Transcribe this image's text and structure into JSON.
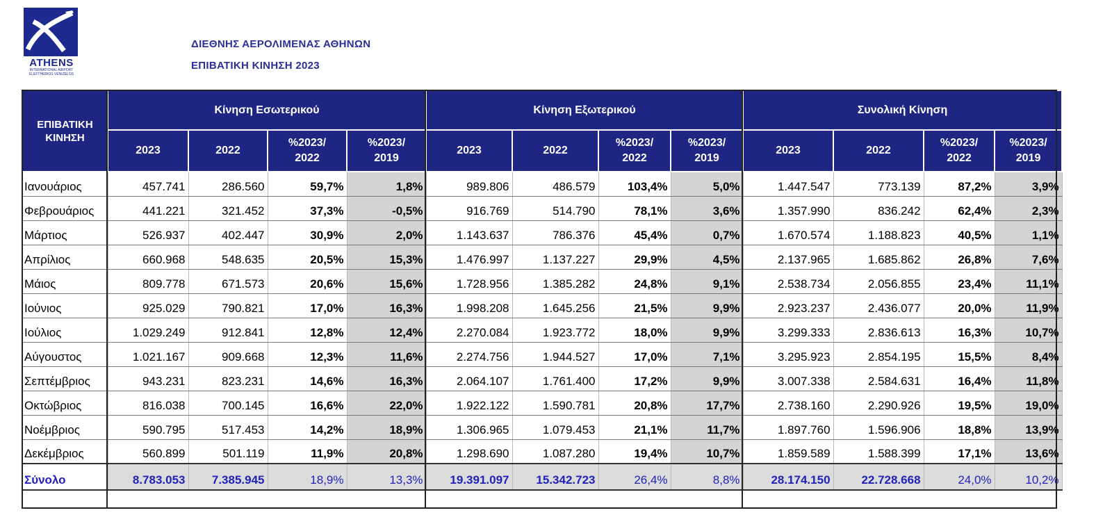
{
  "logo": {
    "word": "ATHENS",
    "sub1": "INTERNATIONAL AIRPORT",
    "sub2": "ELEFTHERIOS VENIZELOS",
    "colors": {
      "brand": "#1e2a8f"
    }
  },
  "header": {
    "title": "ΔΙΕΘΝΗΣ ΑΕΡΟΛΙΜΕΝΑΣ ΑΘΗΝΩΝ",
    "subtitle": "ΕΠΙΒΑΤΙΚΗ ΚΙΝΗΣΗ 2023"
  },
  "table": {
    "corner_line1": "ΕΠΙΒΑΤΙΚΗ",
    "corner_line2": "ΚΙΝΗΣΗ",
    "groups": [
      "Κίνηση Εσωτερικού",
      "Κίνηση Εξωτερικού",
      "Συνολική Κίνηση"
    ],
    "subcols": [
      {
        "l1": "2023",
        "l2": ""
      },
      {
        "l1": "2022",
        "l2": ""
      },
      {
        "l1": "%2023/",
        "l2": "2022"
      },
      {
        "l1": "%2023/",
        "l2": "2019"
      }
    ],
    "rows": [
      {
        "month": "Ιανουάριος",
        "d23": "457.741",
        "d22": "286.560",
        "dp22": "59,7%",
        "dp19": "1,8%",
        "i23": "989.806",
        "i22": "486.579",
        "ip22": "103,4%",
        "ip19": "5,0%",
        "t23": "1.447.547",
        "t22": "773.139",
        "tp22": "87,2%",
        "tp19": "3,9%"
      },
      {
        "month": "Φεβρουάριος",
        "d23": "441.221",
        "d22": "321.452",
        "dp22": "37,3%",
        "dp19": "-0,5%",
        "i23": "916.769",
        "i22": "514.790",
        "ip22": "78,1%",
        "ip19": "3,6%",
        "t23": "1.357.990",
        "t22": "836.242",
        "tp22": "62,4%",
        "tp19": "2,3%"
      },
      {
        "month": "Μάρτιος",
        "d23": "526.937",
        "d22": "402.447",
        "dp22": "30,9%",
        "dp19": "2,0%",
        "i23": "1.143.637",
        "i22": "786.376",
        "ip22": "45,4%",
        "ip19": "0,7%",
        "t23": "1.670.574",
        "t22": "1.188.823",
        "tp22": "40,5%",
        "tp19": "1,1%"
      },
      {
        "month": "Απρίλιος",
        "d23": "660.968",
        "d22": "548.635",
        "dp22": "20,5%",
        "dp19": "15,3%",
        "i23": "1.476.997",
        "i22": "1.137.227",
        "ip22": "29,9%",
        "ip19": "4,5%",
        "t23": "2.137.965",
        "t22": "1.685.862",
        "tp22": "26,8%",
        "tp19": "7,6%"
      },
      {
        "month": "Μάιος",
        "d23": "809.778",
        "d22": "671.573",
        "dp22": "20,6%",
        "dp19": "15,6%",
        "i23": "1.728.956",
        "i22": "1.385.282",
        "ip22": "24,8%",
        "ip19": "9,1%",
        "t23": "2.538.734",
        "t22": "2.056.855",
        "tp22": "23,4%",
        "tp19": "11,1%"
      },
      {
        "month": "Ιούνιος",
        "d23": "925.029",
        "d22": "790.821",
        "dp22": "17,0%",
        "dp19": "16,3%",
        "i23": "1.998.208",
        "i22": "1.645.256",
        "ip22": "21,5%",
        "ip19": "9,9%",
        "t23": "2.923.237",
        "t22": "2.436.077",
        "tp22": "20,0%",
        "tp19": "11,9%"
      },
      {
        "month": "Ιούλιος",
        "d23": "1.029.249",
        "d22": "912.841",
        "dp22": "12,8%",
        "dp19": "12,4%",
        "i23": "2.270.084",
        "i22": "1.923.772",
        "ip22": "18,0%",
        "ip19": "9,9%",
        "t23": "3.299.333",
        "t22": "2.836.613",
        "tp22": "16,3%",
        "tp19": "10,7%"
      },
      {
        "month": "Αύγουστος",
        "d23": "1.021.167",
        "d22": "909.668",
        "dp22": "12,3%",
        "dp19": "11,6%",
        "i23": "2.274.756",
        "i22": "1.944.527",
        "ip22": "17,0%",
        "ip19": "7,1%",
        "t23": "3.295.923",
        "t22": "2.854.195",
        "tp22": "15,5%",
        "tp19": "8,4%"
      },
      {
        "month": "Σεπτέμβριος",
        "d23": "943.231",
        "d22": "823.231",
        "dp22": "14,6%",
        "dp19": "16,3%",
        "i23": "2.064.107",
        "i22": "1.761.400",
        "ip22": "17,2%",
        "ip19": "9,9%",
        "t23": "3.007.338",
        "t22": "2.584.631",
        "tp22": "16,4%",
        "tp19": "11,8%"
      },
      {
        "month": "Οκτώβριος",
        "d23": "816.038",
        "d22": "700.145",
        "dp22": "16,6%",
        "dp19": "22,0%",
        "i23": "1.922.122",
        "i22": "1.590.781",
        "ip22": "20,8%",
        "ip19": "17,7%",
        "t23": "2.738.160",
        "t22": "2.290.926",
        "tp22": "19,5%",
        "tp19": "19,0%"
      },
      {
        "month": "Νοέμβριος",
        "d23": "590.795",
        "d22": "517.453",
        "dp22": "14,2%",
        "dp19": "18,9%",
        "i23": "1.306.965",
        "i22": "1.079.453",
        "ip22": "21,1%",
        "ip19": "11,7%",
        "t23": "1.897.760",
        "t22": "1.596.906",
        "tp22": "18,8%",
        "tp19": "13,9%"
      },
      {
        "month": "Δεκέμβριος",
        "d23": "560.899",
        "d22": "501.119",
        "dp22": "11,9%",
        "dp19": "20,8%",
        "i23": "1.298.690",
        "i22": "1.087.280",
        "ip22": "19,4%",
        "ip19": "10,7%",
        "t23": "1.859.589",
        "t22": "1.588.399",
        "tp22": "17,1%",
        "tp19": "13,6%"
      }
    ],
    "total": {
      "month": "Σύνολο",
      "d23": "8.783.053",
      "d22": "7.385.945",
      "dp22": "18,9%",
      "dp19": "13,3%",
      "i23": "19.391.097",
      "i22": "15.342.723",
      "ip22": "26,4%",
      "ip19": "8,8%",
      "t23": "28.174.150",
      "t22": "22.728.668",
      "tp22": "24,0%",
      "tp19": "10,2%"
    },
    "colors": {
      "header_bg": "#1e2583",
      "total_text": "#2222bb",
      "shade": "#d4d4d4"
    }
  }
}
